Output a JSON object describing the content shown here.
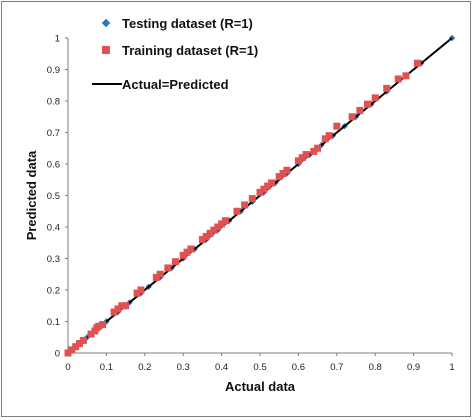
{
  "chart_data": {
    "type": "scatter",
    "xlabel": "Actual data",
    "ylabel": "Predicted data",
    "xlim": [
      0,
      1
    ],
    "ylim": [
      0,
      1
    ],
    "xticks": [
      "0",
      "0.1",
      "0.2",
      "0.3",
      "0.4",
      "0.5",
      "0.6",
      "0.7",
      "0.8",
      "0.9",
      "1"
    ],
    "yticks": [
      "0",
      "0.1",
      "0.2",
      "0.3",
      "0.4",
      "0.5",
      "0.6",
      "0.7",
      "0.8",
      "0.9",
      "1"
    ],
    "grid": false,
    "legend_position": "top-left",
    "series": [
      {
        "name": "Testing dataset (R=1)",
        "marker": "diamond",
        "color": "#2e75b6",
        "points": [
          [
            0,
            0
          ],
          [
            0.02,
            0.02
          ],
          [
            0.05,
            0.05
          ],
          [
            0.08,
            0.08
          ],
          [
            0.1,
            0.1
          ],
          [
            0.13,
            0.13
          ],
          [
            0.16,
            0.16
          ],
          [
            0.19,
            0.19
          ],
          [
            0.21,
            0.21
          ],
          [
            0.24,
            0.24
          ],
          [
            0.27,
            0.27
          ],
          [
            0.3,
            0.3
          ],
          [
            0.33,
            0.33
          ],
          [
            0.36,
            0.36
          ],
          [
            0.39,
            0.39
          ],
          [
            0.42,
            0.42
          ],
          [
            0.45,
            0.45
          ],
          [
            0.48,
            0.48
          ],
          [
            0.51,
            0.51
          ],
          [
            0.54,
            0.54
          ],
          [
            0.57,
            0.57
          ],
          [
            0.6,
            0.6
          ],
          [
            0.63,
            0.63
          ],
          [
            0.66,
            0.66
          ],
          [
            0.69,
            0.69
          ],
          [
            0.72,
            0.72
          ],
          [
            0.75,
            0.75
          ],
          [
            0.79,
            0.79
          ],
          [
            0.83,
            0.83
          ],
          [
            0.88,
            0.88
          ],
          [
            0.92,
            0.92
          ],
          [
            1,
            1
          ]
        ]
      },
      {
        "name": "Training dataset (R=1)",
        "marker": "square",
        "color": "#e05252",
        "points": [
          [
            0,
            0
          ],
          [
            0.01,
            0.01
          ],
          [
            0.02,
            0.02
          ],
          [
            0.03,
            0.03
          ],
          [
            0.04,
            0.04
          ],
          [
            0.06,
            0.06
          ],
          [
            0.07,
            0.07
          ],
          [
            0.075,
            0.08
          ],
          [
            0.08,
            0.085
          ],
          [
            0.09,
            0.09
          ],
          [
            0.12,
            0.13
          ],
          [
            0.13,
            0.14
          ],
          [
            0.14,
            0.15
          ],
          [
            0.15,
            0.15
          ],
          [
            0.18,
            0.19
          ],
          [
            0.19,
            0.2
          ],
          [
            0.23,
            0.24
          ],
          [
            0.24,
            0.25
          ],
          [
            0.26,
            0.27
          ],
          [
            0.28,
            0.29
          ],
          [
            0.3,
            0.31
          ],
          [
            0.31,
            0.32
          ],
          [
            0.32,
            0.33
          ],
          [
            0.35,
            0.36
          ],
          [
            0.36,
            0.37
          ],
          [
            0.37,
            0.38
          ],
          [
            0.38,
            0.39
          ],
          [
            0.39,
            0.4
          ],
          [
            0.4,
            0.41
          ],
          [
            0.41,
            0.42
          ],
          [
            0.44,
            0.45
          ],
          [
            0.46,
            0.47
          ],
          [
            0.48,
            0.49
          ],
          [
            0.5,
            0.51
          ],
          [
            0.51,
            0.52
          ],
          [
            0.52,
            0.53
          ],
          [
            0.53,
            0.54
          ],
          [
            0.55,
            0.56
          ],
          [
            0.56,
            0.57
          ],
          [
            0.57,
            0.58
          ],
          [
            0.6,
            0.61
          ],
          [
            0.61,
            0.62
          ],
          [
            0.62,
            0.63
          ],
          [
            0.64,
            0.64
          ],
          [
            0.65,
            0.65
          ],
          [
            0.67,
            0.68
          ],
          [
            0.68,
            0.69
          ],
          [
            0.7,
            0.72
          ],
          [
            0.74,
            0.75
          ],
          [
            0.76,
            0.77
          ],
          [
            0.78,
            0.79
          ],
          [
            0.8,
            0.81
          ],
          [
            0.83,
            0.84
          ],
          [
            0.86,
            0.87
          ],
          [
            0.88,
            0.88
          ],
          [
            0.91,
            0.92
          ]
        ]
      },
      {
        "name": "Actual=Predicted",
        "type": "line",
        "color": "#000000",
        "points": [
          [
            0,
            0
          ],
          [
            1,
            1
          ]
        ]
      }
    ]
  }
}
